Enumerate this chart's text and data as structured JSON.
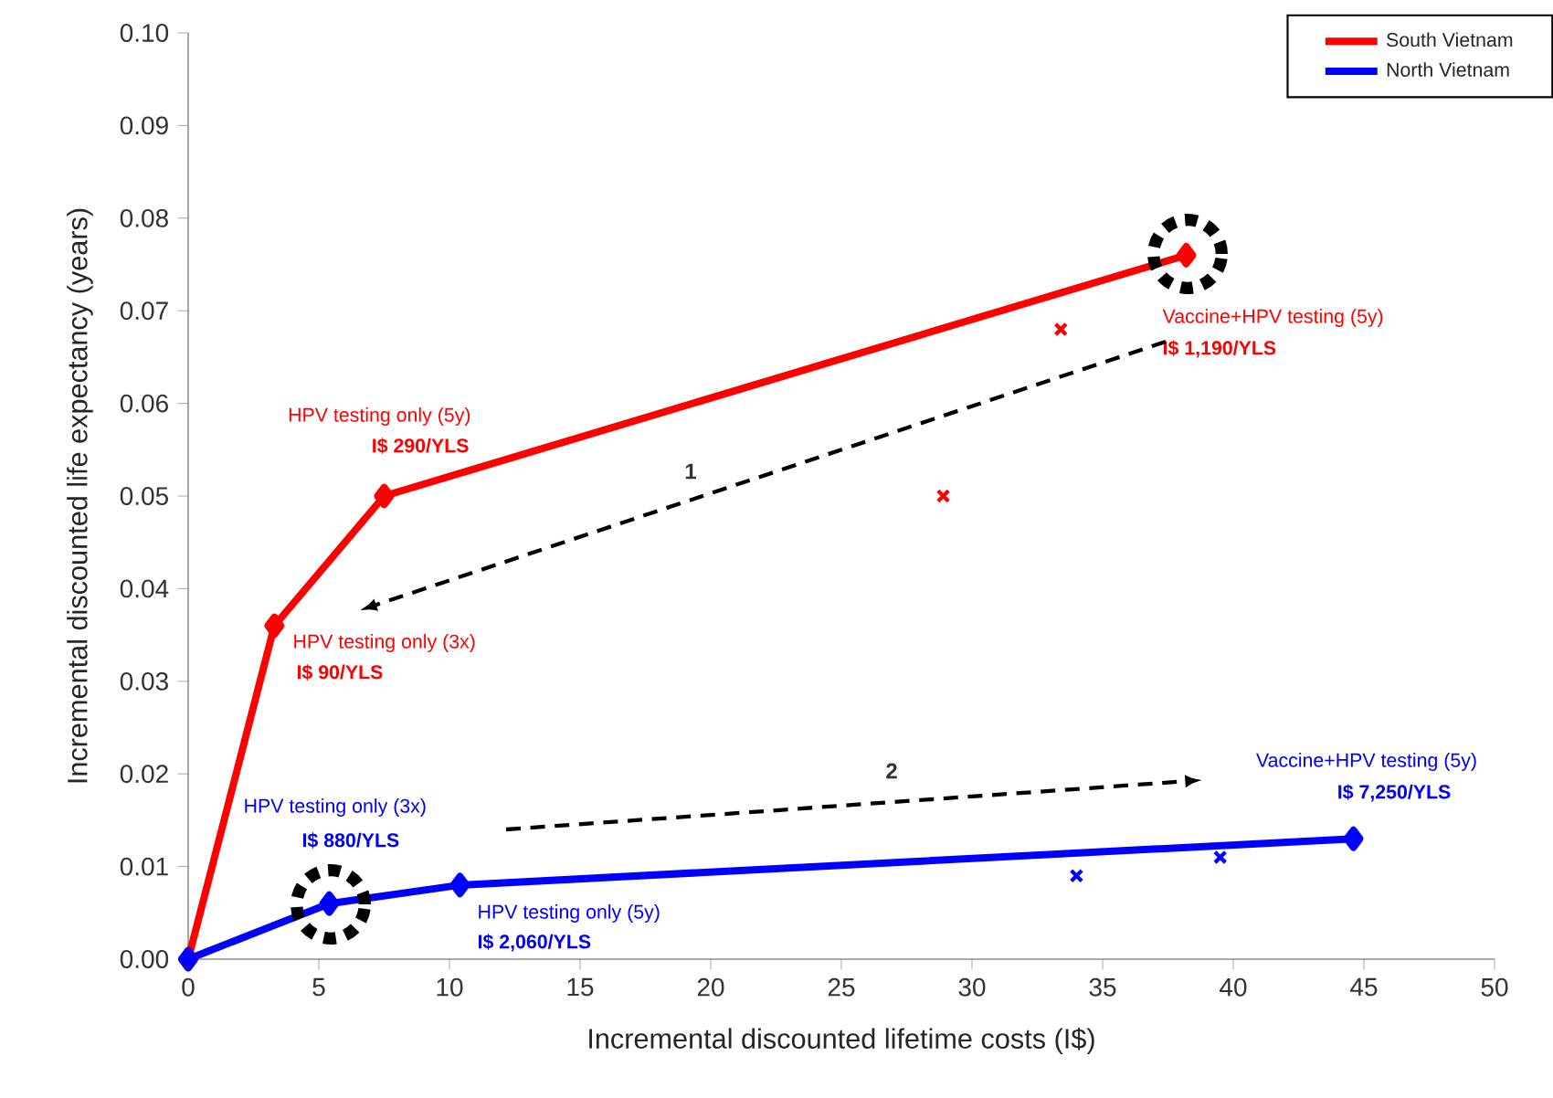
{
  "chart_data": {
    "type": "line",
    "xlabel": "Incremental discounted lifetime costs (I$)",
    "ylabel": "Incremental discounted life expectancy (years)",
    "xlim": [
      0,
      50
    ],
    "ylim": [
      0,
      0.1
    ],
    "xticks": [
      0,
      5,
      10,
      15,
      20,
      25,
      30,
      35,
      40,
      45,
      50
    ],
    "yticks": [
      {
        "value": 0,
        "label": "0.00"
      },
      {
        "value": 0.01,
        "label": "0.01"
      },
      {
        "value": 0.02,
        "label": "0.02"
      },
      {
        "value": 0.03,
        "label": "0.03"
      },
      {
        "value": 0.04,
        "label": "0.04"
      },
      {
        "value": 0.05,
        "label": "0.05"
      },
      {
        "value": 0.06,
        "label": "0.06"
      },
      {
        "value": 0.07,
        "label": "0.07"
      },
      {
        "value": 0.08,
        "label": "0.08"
      },
      {
        "value": 0.09,
        "label": "0.09"
      },
      {
        "value": 0.1,
        "label": "0.10"
      }
    ],
    "legend": "top right",
    "series": [
      {
        "name": "South Vietnam",
        "color": "#ff0000",
        "x": [
          0,
          3.3,
          7.5,
          38.2
        ],
        "values": [
          0,
          0.036,
          0.05,
          0.076
        ],
        "marker": "diamond"
      },
      {
        "name": "North Vietnam",
        "color": "#0000ff",
        "x": [
          0,
          5.4,
          10.4,
          44.6
        ],
        "values": [
          0,
          0.006,
          0.008,
          0.013
        ],
        "marker": "diamond"
      },
      {
        "type": "scatter",
        "color": "#ff0000",
        "x": [
          28.9,
          33.4
        ],
        "values": [
          0.05,
          0.068
        ],
        "marker": "cross"
      },
      {
        "type": "scatter",
        "color": "#0000ff",
        "x": [
          34.0,
          39.5
        ],
        "values": [
          0.009,
          0.011
        ],
        "marker": "cross"
      }
    ],
    "annotations": [
      "HPV testing only (5y)",
      "I$ 290/YLS",
      "HPV testing only (3x)",
      "I$ 90/YLS",
      "Vaccine+HPV testing (5y)",
      "I$ 1,190/YLS",
      "HPV testing only (3x)",
      "I$ 880/YLS",
      "HPV testing only (5y)",
      "I$ 2,060/YLS",
      "Vaccine+HPV testing (5y)",
      "I$ 7,250/YLS",
      "1",
      "2"
    ]
  }
}
